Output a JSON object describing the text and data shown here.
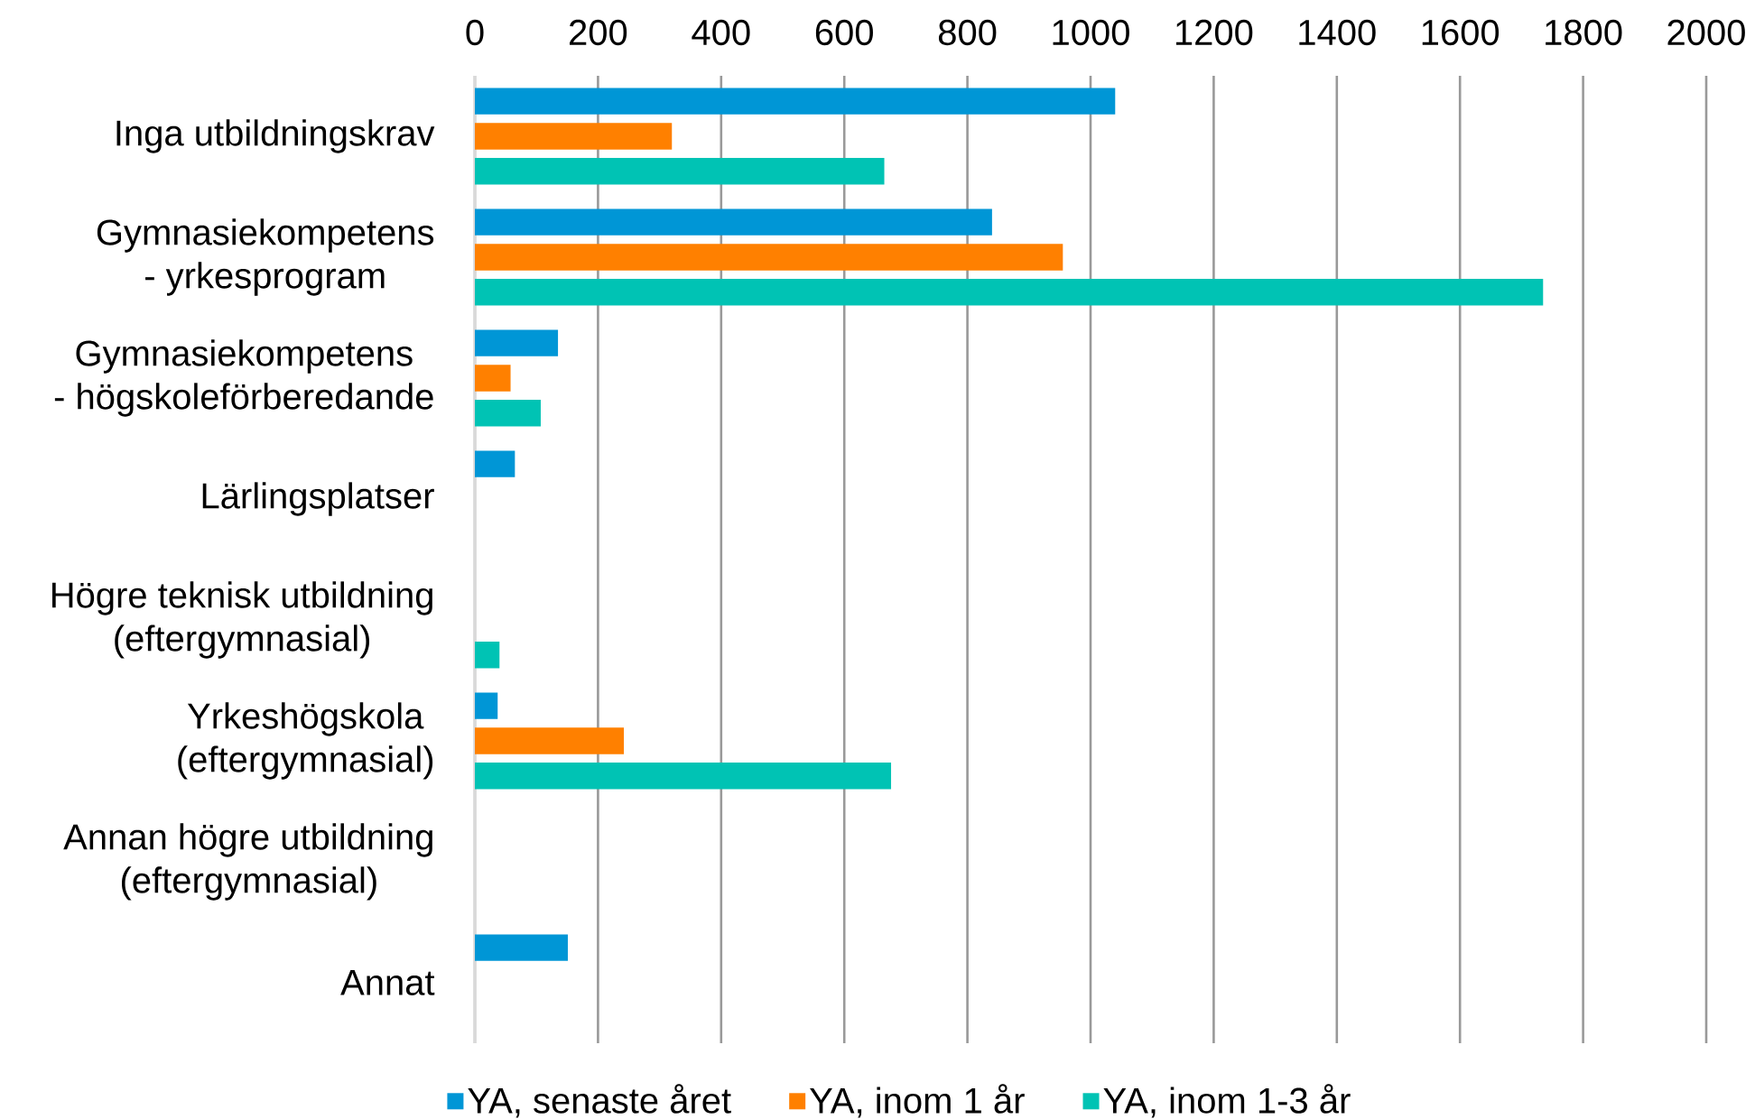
{
  "chart_data": {
    "type": "bar",
    "orientation": "horizontal",
    "categories": [
      "Inga utbildningskrav",
      "Gymnasiekompetens\n- yrkesprogram",
      "Gymnasiekompetens\n- högskoleförberedande",
      "Lärlingsplatser",
      "Högre teknisk utbildning\n(eftergymnasial)",
      "Yrkeshögskola\n(eftergymnasial)",
      "Annan högre utbildning\n(eftergymnasial)",
      "Annat"
    ],
    "series": [
      {
        "name": "YA, senaste året",
        "color": "#0096d6",
        "values": [
          1040,
          840,
          135,
          65,
          null,
          37,
          null,
          151
        ]
      },
      {
        "name": "YA, inom 1 år",
        "color": "#ff8000",
        "values": [
          320,
          955,
          58,
          null,
          null,
          242,
          null,
          null
        ]
      },
      {
        "name": "YA, inom 1-3 år",
        "color": "#00c3b4",
        "values": [
          665,
          1735,
          107,
          null,
          40,
          676,
          null,
          null
        ]
      }
    ],
    "xlim": [
      0,
      2000
    ],
    "xticks": [
      0,
      200,
      400,
      600,
      800,
      1000,
      1200,
      1400,
      1600,
      1800,
      2000
    ],
    "grid": "x",
    "legend": "bottom"
  }
}
